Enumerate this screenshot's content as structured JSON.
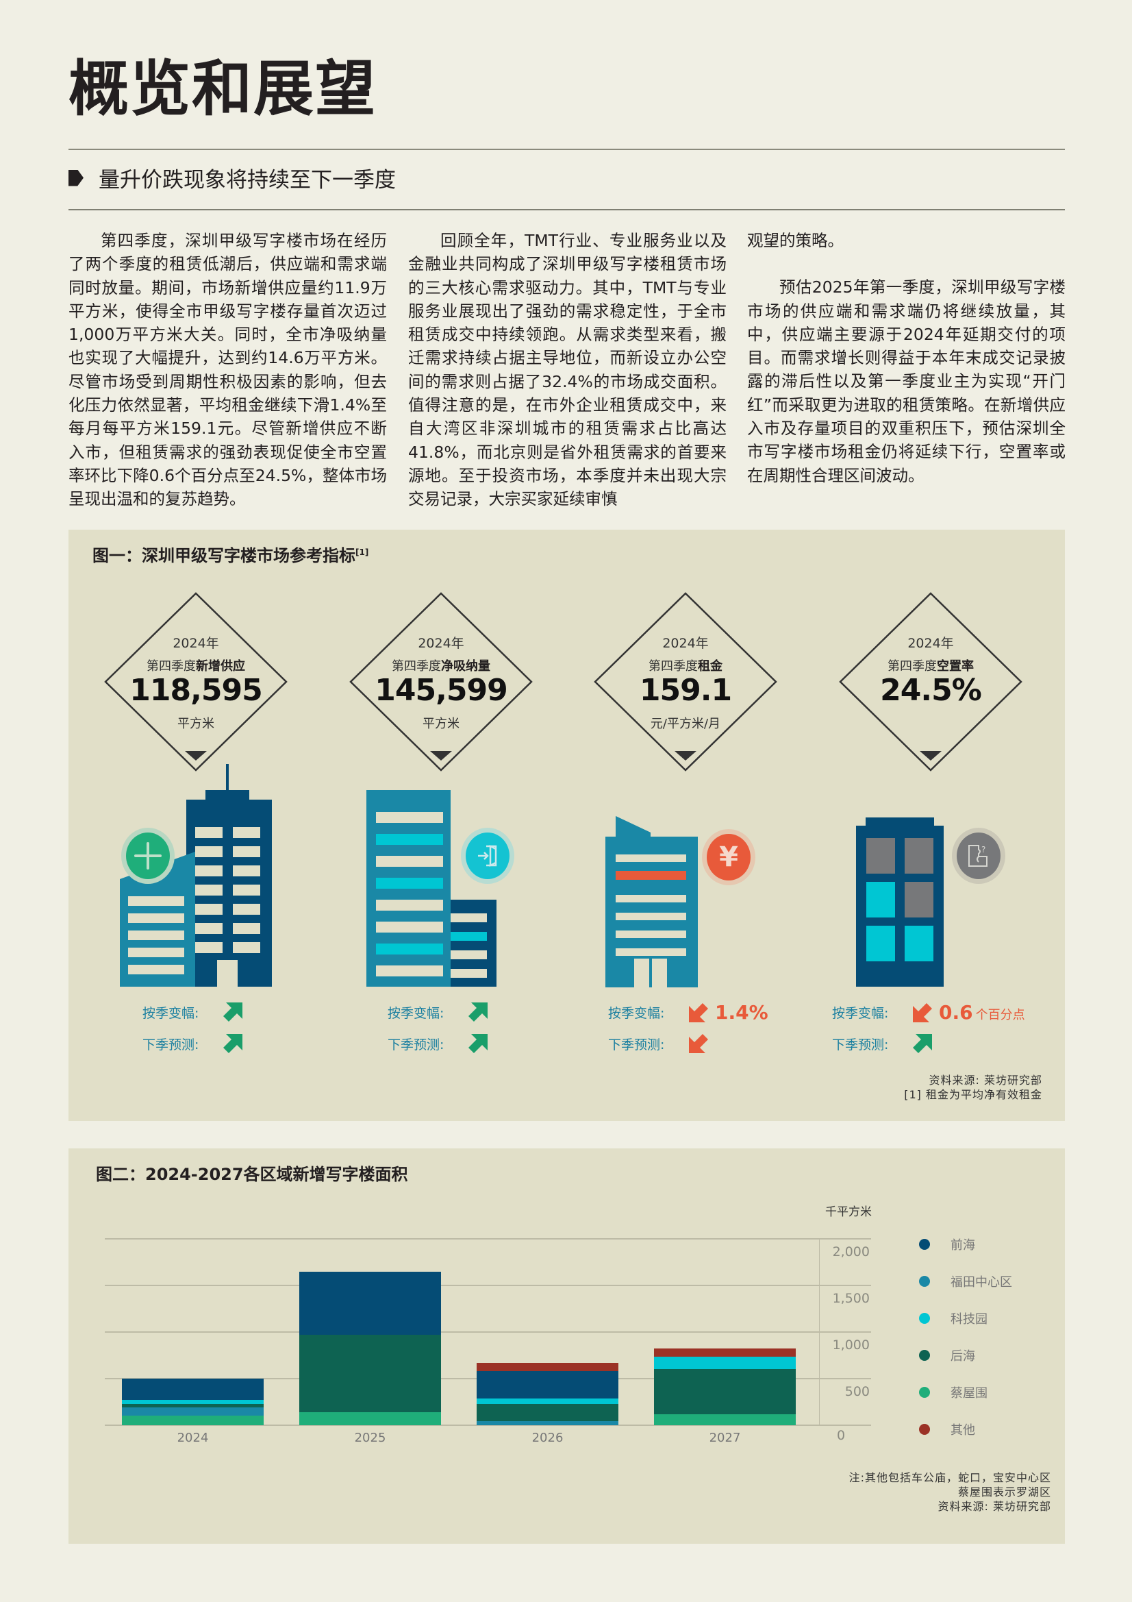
{
  "page": {
    "title": "概览和展望",
    "subtitle": "量升价跌现象将持续至下一季度"
  },
  "body": {
    "col1": [
      "第四季度，深圳甲级写字楼市场在经历了两个季度的租赁低潮后，供应端和需求端同时放量。期间，市场新增供应量约11.9万平方米，使得全市甲级写字楼存量首次迈过1,000万平方米大关。同时，全市净吸纳量也实现了大幅提升，达到约14.6万平方米。尽管市场受到周期性积极因素的影响，但去化压力依然显著，平均租金继续下滑1.4%至每月每平方米159.1元。尽管新增供应不断入市，但租赁需求的强劲表现促使全市空置率环比下降0.6个百分点至24.5%，整体市场呈现出温和的复苏趋势。"
    ],
    "col2": [
      "回顾全年，TMT行业、专业服务业以及金融业共同构成了深圳甲级写字楼租赁市场的三大核心需求驱动力。其中，TMT与专业服务业展现出了强劲的需求稳定性，于全市租赁成交中持续领跑。从需求类型来看，搬迁需求持续占据主导地位，而新设立办公空间的需求则占据了32.4%的市场成交面积。值得注意的是，在市外企业租赁成交中，来自大湾区非深圳城市的租赁需求占比高达41.8%，而北京则是省外租赁需求的首要来源地。至于投资市场，本季度并未出现大宗交易记录，大宗买家延续审慎"
    ],
    "col3_cont": "观望的策略。",
    "col3": "预估2025年第一季度，深圳甲级写字楼市场的供应端和需求端仍将继续放量，其中，供应端主要源于2024年延期交付的项目。而需求增长则得益于本年末成交记录披露的滞后性以及第一季度业主为实现“开门红”而采取更为进取的租赁策略。在新增供应入市及存量项目的双重积压下，预估深圳全市写字楼市场租金仍将延续下行，空置率或在周期性合理区间波动。"
  },
  "figure1": {
    "title": "图一：深圳甲级写字楼市场参考指标",
    "title_sup": "[1]",
    "change_label": "按季变幅:",
    "forecast_label": "下季预测:",
    "indicators": [
      {
        "year": "2024年",
        "label_prefix": "第四季度",
        "label_bold": "新增供应",
        "value": "118,595",
        "unit": "平方米",
        "icon": "plus-icon",
        "qoq_dir": "up",
        "qoq_value": "",
        "qoq_suffix": "",
        "forecast_dir": "up"
      },
      {
        "year": "2024年",
        "label_prefix": "第四季度",
        "label_bold": "净吸纳量",
        "value": "145,599",
        "unit": "平方米",
        "icon": "enter-door-icon",
        "qoq_dir": "up",
        "qoq_value": "",
        "qoq_suffix": "",
        "forecast_dir": "up"
      },
      {
        "year": "2024年",
        "label_prefix": "第四季度",
        "label_bold": "租金",
        "value": "159.1",
        "unit": "元/平方米/月",
        "icon": "yuan-icon",
        "qoq_dir": "down",
        "qoq_value": "1.4%",
        "qoq_suffix": "",
        "forecast_dir": "down"
      },
      {
        "year": "2024年",
        "label_prefix": "第四季度",
        "label_bold": "空置率",
        "value": "24.5%",
        "unit": "",
        "icon": "puzzle-icon",
        "qoq_dir": "down",
        "qoq_value": "0.6",
        "qoq_suffix": "个百分点",
        "forecast_dir": "up"
      }
    ],
    "notes": [
      "资料来源: 莱坊研究部",
      "[1] 租金为平均净有效租金"
    ]
  },
  "figure2": {
    "title": "图二：2024-2027各区域新增写字楼面积",
    "notes": [
      "注:其他包括车公庙，蛇口，宝安中心区",
      "蔡屋围表示罗湖区",
      "资料来源: 莱坊研究部"
    ]
  },
  "chart_data": {
    "type": "bar",
    "stacked": true,
    "title": "图二：2024-2027各区域新增写字楼面积",
    "xlabel": "",
    "ylabel": "千平方米",
    "ylim": [
      0,
      2000
    ],
    "yticks": [
      "2,000",
      "1,500",
      "1,000",
      "500",
      "0"
    ],
    "grid": true,
    "legend_position": "right",
    "categories": [
      "2024",
      "2025",
      "2026",
      "2027"
    ],
    "series": [
      {
        "name": "蔡屋围",
        "color": "#1fae7a",
        "values": [
          100,
          137,
          0,
          118
        ]
      },
      {
        "name": "福田中心区",
        "color": "#1a88a6",
        "values": [
          88,
          0,
          44,
          0
        ]
      },
      {
        "name": "后海",
        "color": "#0e6352",
        "values": [
          42,
          836,
          185,
          488
        ]
      },
      {
        "name": "科技园",
        "color": "#00c6d3",
        "values": [
          39,
          0,
          59,
          126
        ]
      },
      {
        "name": "前海",
        "color": "#054c75",
        "values": [
          232,
          675,
          296,
          0
        ]
      },
      {
        "name": "其他",
        "color": "#9b3226",
        "values": [
          0,
          0,
          89,
          89
        ]
      }
    ],
    "legend_order": [
      "前海",
      "福田中心区",
      "科技园",
      "后海",
      "蔡屋围",
      "其他"
    ]
  },
  "colors": {
    "page_bg": "#f0efe4",
    "panel_bg": "#e1dfc8",
    "navy": "#054c75",
    "teal": "#1a88a6",
    "cyan": "#00c6d3",
    "green_up": "#1a9e6a",
    "red_down": "#e85a3a",
    "label_blue": "#1a7fa0"
  }
}
